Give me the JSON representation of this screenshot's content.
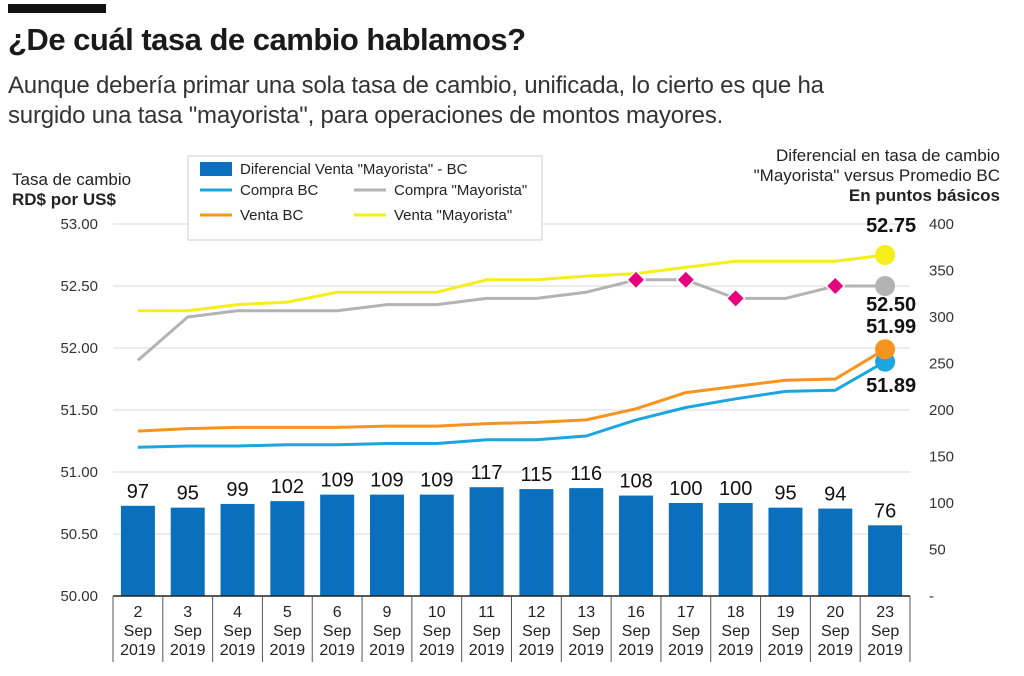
{
  "header": {
    "title": "¿De cuál tasa de cambio hablamos?",
    "subtitle": "Aunque debería primar una sola tasa de cambio, unificada, lo cierto es que ha surgido una tasa \"mayorista\", para operaciones de montos mayores."
  },
  "axes": {
    "left_title": "Tasa de cambio",
    "left_unit": "RD$ por US$",
    "right_title": "Diferencial en tasa de cambio \"Mayorista\" versus Promedio BC",
    "right_unit": "En puntos básicos"
  },
  "colors": {
    "bar": "#0a6fbd",
    "compra_bc": "#1ba6e0",
    "venta_bc": "#f7931e",
    "compra_mayorista": "#b3b3b3",
    "venta_mayorista": "#f5ee1a",
    "marker": "#e6007e"
  },
  "chart_data": {
    "type": "bar",
    "categories": [
      [
        "2",
        "Sep",
        "2019"
      ],
      [
        "3",
        "Sep",
        "2019"
      ],
      [
        "4",
        "Sep",
        "2019"
      ],
      [
        "5",
        "Sep",
        "2019"
      ],
      [
        "6",
        "Sep",
        "2019"
      ],
      [
        "9",
        "Sep",
        "2019"
      ],
      [
        "10",
        "Sep",
        "2019"
      ],
      [
        "11",
        "Sep",
        "2019"
      ],
      [
        "12",
        "Sep",
        "2019"
      ],
      [
        "13",
        "Sep",
        "2019"
      ],
      [
        "16",
        "Sep",
        "2019"
      ],
      [
        "17",
        "Sep",
        "2019"
      ],
      [
        "18",
        "Sep",
        "2019"
      ],
      [
        "19",
        "Sep",
        "2019"
      ],
      [
        "20",
        "Sep",
        "2019"
      ],
      [
        "23",
        "Sep",
        "2019"
      ]
    ],
    "left_axis": {
      "ticks": [
        "53.00",
        "52.50",
        "52.00",
        "51.50",
        "51.00",
        "50.50",
        "50.00"
      ],
      "range": [
        50.0,
        53.0
      ]
    },
    "right_axis": {
      "ticks": [
        "400",
        "350",
        "300",
        "250",
        "200",
        "150",
        "100",
        "50",
        "-"
      ],
      "range": [
        0,
        400
      ]
    },
    "bars": {
      "name": "Diferencial Venta \"Mayorista\" - BC",
      "values": [
        97,
        95,
        99,
        102,
        109,
        109,
        109,
        117,
        115,
        116,
        108,
        100,
        100,
        95,
        94,
        76
      ]
    },
    "series": [
      {
        "name": "Compra BC",
        "key": "compra_bc",
        "values": [
          51.2,
          51.21,
          51.21,
          51.22,
          51.22,
          51.23,
          51.23,
          51.26,
          51.26,
          51.29,
          51.42,
          51.52,
          51.59,
          51.65,
          51.66,
          51.89
        ]
      },
      {
        "name": "Venta BC",
        "key": "venta_bc",
        "values": [
          51.33,
          51.35,
          51.36,
          51.36,
          51.36,
          51.37,
          51.37,
          51.39,
          51.4,
          51.42,
          51.51,
          51.64,
          51.69,
          51.74,
          51.75,
          51.99
        ]
      },
      {
        "name": "Compra \"Mayorista\"",
        "key": "compra_mayorista",
        "values": [
          51.9,
          52.25,
          52.3,
          52.3,
          52.3,
          52.35,
          52.35,
          52.4,
          52.4,
          52.45,
          52.55,
          52.55,
          52.4,
          52.4,
          52.5,
          52.5
        ]
      },
      {
        "name": "Venta \"Mayorista\"",
        "key": "venta_mayorista",
        "values": [
          52.3,
          52.3,
          52.35,
          52.37,
          52.45,
          52.45,
          52.45,
          52.55,
          52.55,
          52.58,
          52.6,
          52.65,
          52.7,
          52.7,
          52.7,
          52.75
        ]
      }
    ],
    "diamond_markers": [
      10,
      11,
      12,
      14
    ],
    "end_labels": {
      "venta_mayorista": "52.75",
      "compra_mayorista": "52.50",
      "venta_bc": "51.99",
      "compra_bc": "51.89"
    }
  }
}
